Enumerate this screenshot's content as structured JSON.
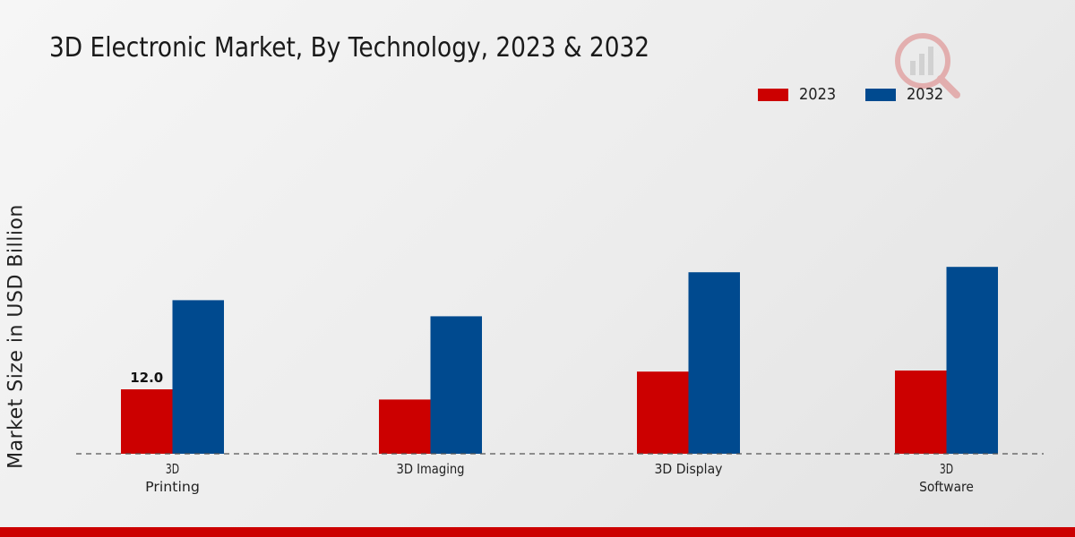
{
  "colors": {
    "series_2023": "#cc0000",
    "series_2032": "#004a8f",
    "bottom_bar": "#cc0000"
  },
  "watermark_icon": "market-research-logo-icon",
  "chart_data": {
    "type": "bar",
    "title": "3D Electronic Market, By Technology, 2023 & 2032",
    "xlabel": "",
    "ylabel": "Market Size in USD Billion",
    "categories": [
      [
        "3D",
        "Printing"
      ],
      [
        "3D Imaging"
      ],
      [
        "3D Display"
      ],
      [
        "3D",
        "Software"
      ]
    ],
    "series": [
      {
        "name": "2023",
        "values": [
          12.0,
          10.1,
          15.3,
          15.5
        ]
      },
      {
        "name": "2032",
        "values": [
          28.6,
          25.6,
          33.8,
          34.8
        ]
      }
    ],
    "data_labels": [
      {
        "series": 0,
        "index": 0,
        "text": "12.0"
      }
    ],
    "ylim": [
      0,
      60
    ],
    "grid": false,
    "legend": "top-right"
  }
}
